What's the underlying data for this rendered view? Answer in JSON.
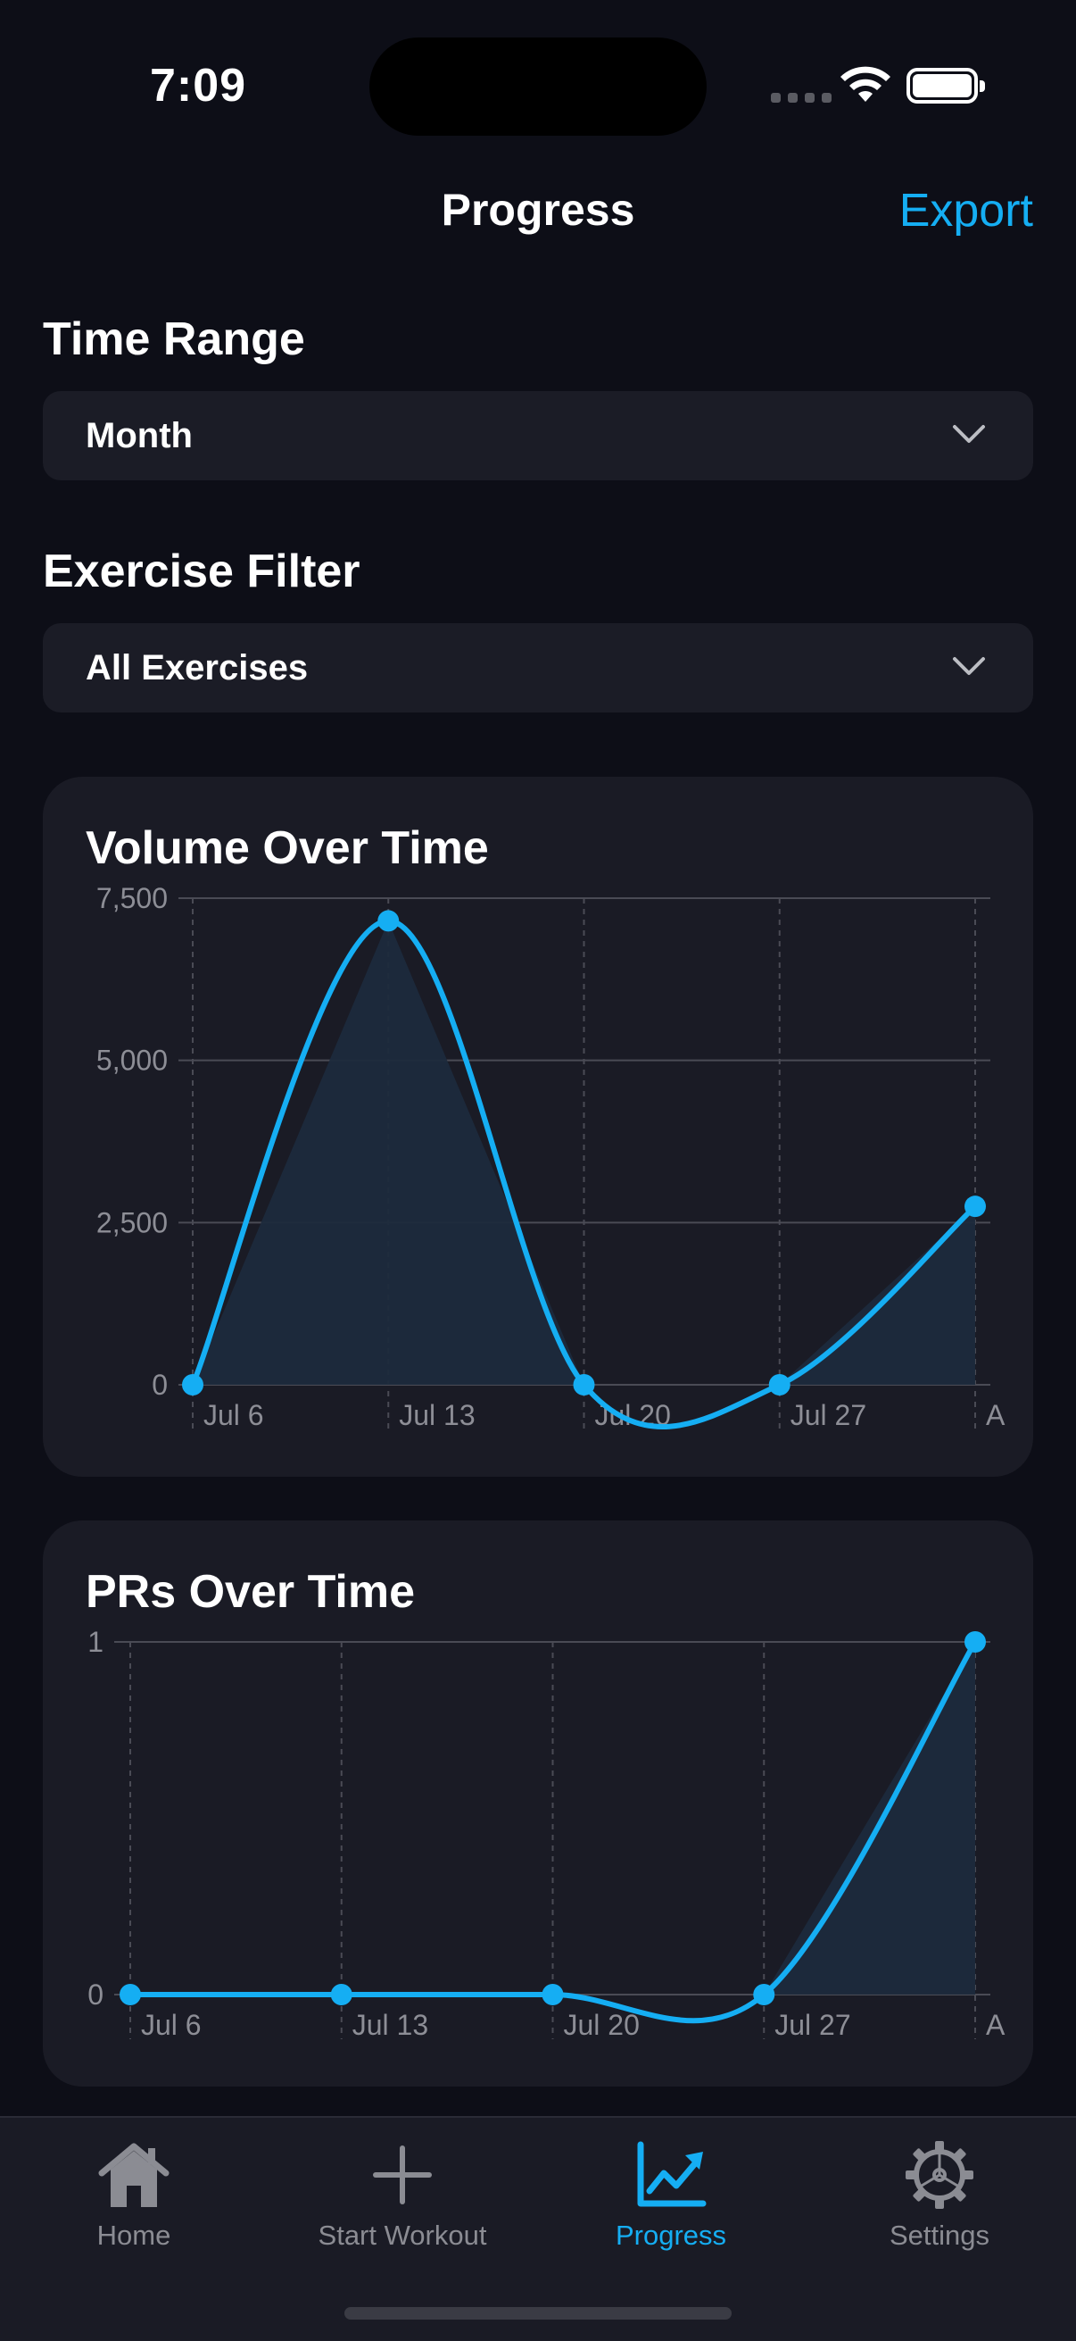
{
  "status_bar": {
    "time": "7:09"
  },
  "nav": {
    "title": "Progress",
    "action": "Export"
  },
  "filters": {
    "time_range": {
      "label": "Time Range",
      "value": "Month"
    },
    "exercise": {
      "label": "Exercise Filter",
      "value": "All Exercises"
    }
  },
  "colors": {
    "accent": "#15aef3",
    "background": "#0d0e17",
    "card": "#1a1b25"
  },
  "chart_data": [
    {
      "type": "line",
      "title": "Volume Over Time",
      "x": [
        "Jul 6",
        "Jul 13",
        "Jul 20",
        "Jul 27",
        "A"
      ],
      "values": [
        0,
        7150,
        0,
        0,
        2750
      ],
      "yticks": [
        "7,500",
        "5,000",
        "2,500",
        "0"
      ],
      "ylim": [
        0,
        7500
      ],
      "grid": true,
      "area_fill": true,
      "smooth": true
    },
    {
      "type": "line",
      "title": "PRs Over Time",
      "x": [
        "Jul 6",
        "Jul 13",
        "Jul 20",
        "Jul 27",
        "A"
      ],
      "values": [
        0,
        0,
        0,
        0,
        1
      ],
      "yticks": [
        "1",
        "0"
      ],
      "ylim": [
        0,
        1
      ],
      "grid": true,
      "area_fill": true,
      "smooth": true
    }
  ],
  "tabbar": {
    "items": [
      {
        "label": "Home",
        "icon": "house-icon"
      },
      {
        "label": "Start Workout",
        "icon": "plus-icon"
      },
      {
        "label": "Progress",
        "icon": "chart-icon",
        "active": true
      },
      {
        "label": "Settings",
        "icon": "gear-icon"
      }
    ]
  }
}
